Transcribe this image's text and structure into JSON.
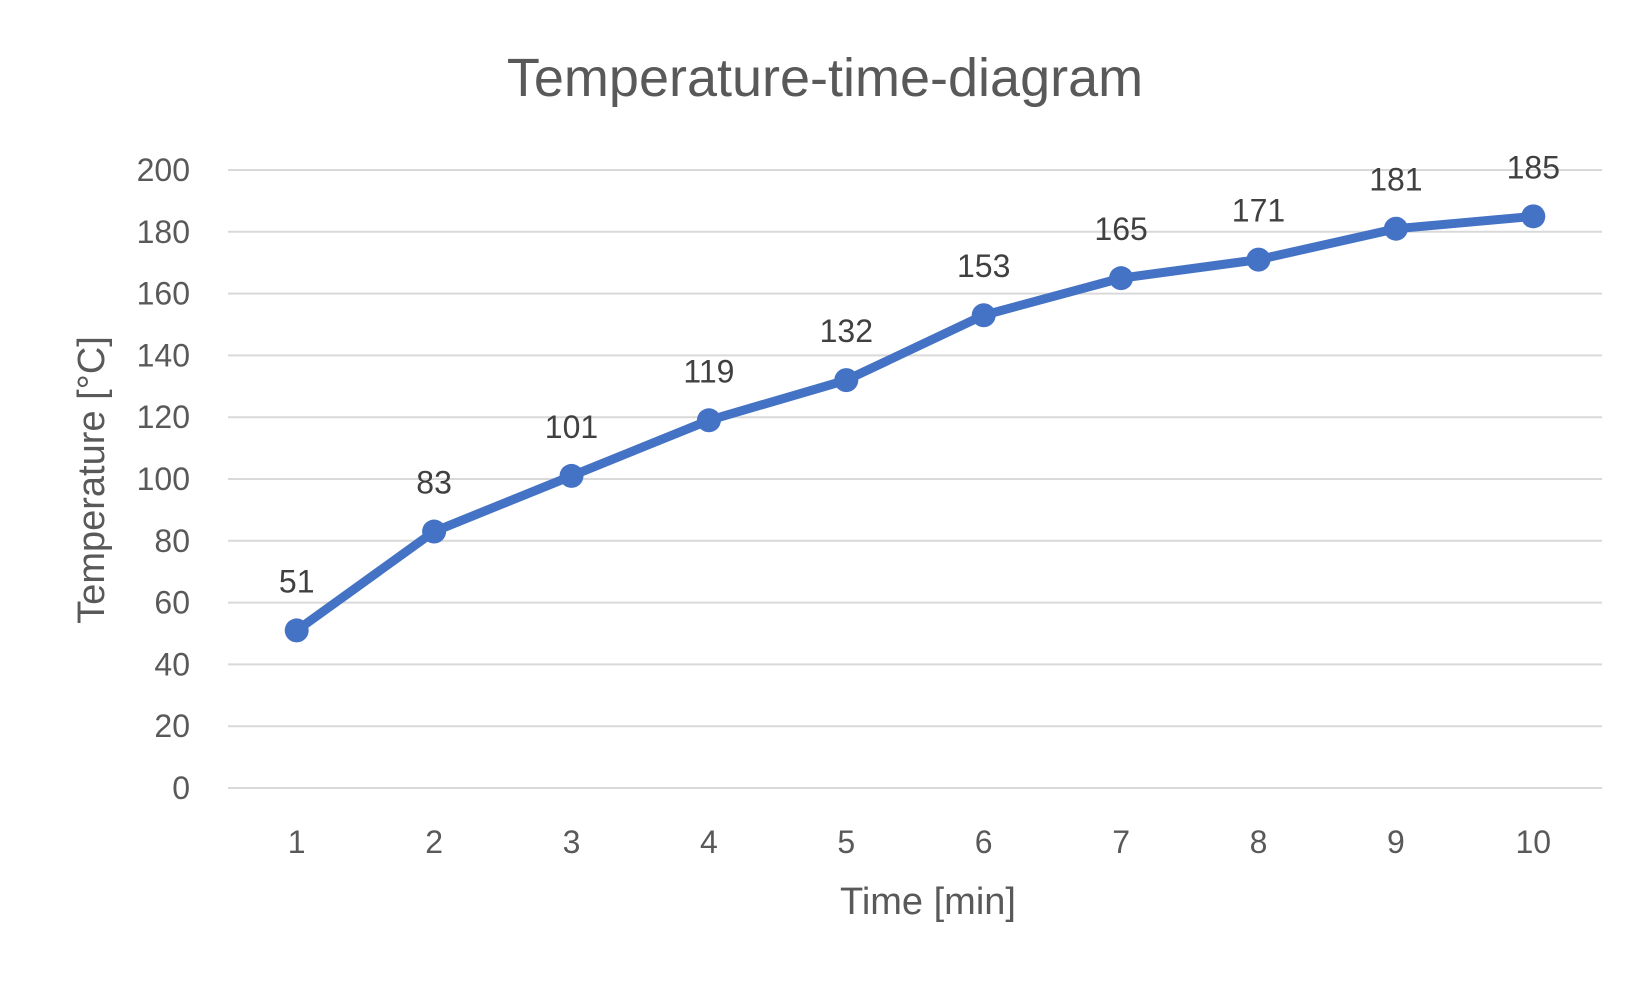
{
  "chart_data": {
    "type": "line",
    "title": "Temperature-time-diagram",
    "xlabel": "Time [min]",
    "ylabel": "Temperature [°C]",
    "categories": [
      "1",
      "2",
      "3",
      "4",
      "5",
      "6",
      "7",
      "8",
      "9",
      "10"
    ],
    "series": [
      {
        "values": [
          51,
          83,
          101,
          119,
          132,
          153,
          165,
          171,
          181,
          185
        ],
        "color": "#4472c4",
        "markers": true,
        "data_labels": true
      }
    ],
    "ylim": [
      0,
      200
    ],
    "yticks": [
      0,
      20,
      40,
      60,
      80,
      100,
      120,
      140,
      160,
      180,
      200
    ],
    "grid": true,
    "legend": "none"
  }
}
